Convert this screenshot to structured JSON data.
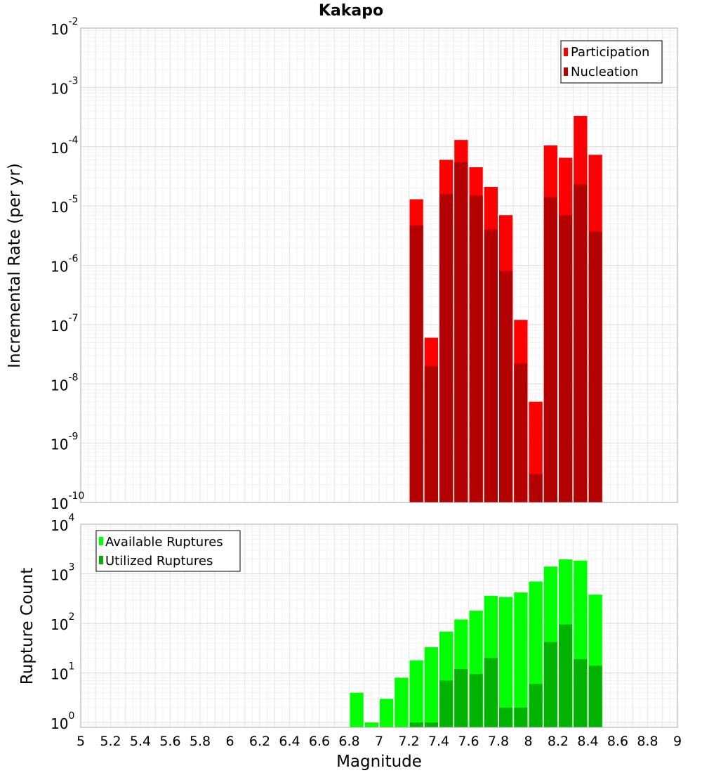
{
  "chart_data": [
    {
      "type": "bar",
      "title": "Kakapo",
      "xlabel": "",
      "ylabel": "Incremental Rate (per yr)",
      "yscale": "log",
      "ylim": [
        1e-10,
        0.01
      ],
      "xlim": [
        5,
        9
      ],
      "y_tick_exponents": [
        "-2",
        "-3",
        "-4",
        "-5",
        "-6",
        "-7",
        "-8",
        "-9",
        "-10"
      ],
      "legend": {
        "position": "top-right",
        "entries": [
          "Participation",
          "Nucleation"
        ]
      },
      "colors": {
        "Participation": "#ff0000",
        "Nucleation": "#b30000"
      },
      "x": [
        7.25,
        7.35,
        7.45,
        7.55,
        7.65,
        7.75,
        7.85,
        7.95,
        8.05,
        8.15,
        8.25,
        8.35,
        8.45
      ],
      "series": [
        {
          "name": "Participation",
          "values": [
            1.3e-05,
            6e-08,
            6e-05,
            0.00013,
            4.5e-05,
            2.1e-05,
            7e-06,
            1.2e-07,
            5e-09,
            0.000105,
            6.5e-05,
            0.00033,
            7.3e-05
          ]
        },
        {
          "name": "Nucleation",
          "values": [
            4.7e-06,
            2e-08,
            1.6e-05,
            5.5e-05,
            1.5e-05,
            4e-06,
            8e-07,
            2.2e-08,
            3e-10,
            1.4e-05,
            7e-06,
            2.3e-05,
            3.7e-06
          ]
        }
      ]
    },
    {
      "type": "bar",
      "xlabel": "Magnitude",
      "ylabel": "Rupture Count",
      "yscale": "log",
      "ylim": [
        0.8,
        10000
      ],
      "xlim": [
        5,
        9
      ],
      "x_tick_labels": [
        "5",
        "5.2",
        "5.4",
        "5.6",
        "5.8",
        "6",
        "6.2",
        "6.4",
        "6.6",
        "6.8",
        "7",
        "7.2",
        "7.4",
        "7.6",
        "7.8",
        "8",
        "8.2",
        "8.4",
        "8.6",
        "8.8",
        "9"
      ],
      "y_tick_exponents": [
        "4",
        "3",
        "2",
        "1",
        "0"
      ],
      "legend": {
        "position": "top-left",
        "entries": [
          "Available Ruptures",
          "Utilized Ruptures"
        ]
      },
      "colors": {
        "Available Ruptures": "#00ff00",
        "Utilized Ruptures": "#00b300"
      },
      "x": [
        6.85,
        6.95,
        7.05,
        7.15,
        7.25,
        7.35,
        7.45,
        7.55,
        7.65,
        7.75,
        7.85,
        7.95,
        8.05,
        8.15,
        8.25,
        8.35,
        8.45
      ],
      "series": [
        {
          "name": "Available Ruptures",
          "values": [
            4,
            1,
            3,
            8,
            18,
            33,
            68,
            120,
            180,
            360,
            340,
            420,
            700,
            1400,
            1950,
            1850,
            380
          ]
        },
        {
          "name": "Utilized Ruptures",
          "values": [
            0,
            0,
            0,
            0,
            1,
            1,
            7,
            12,
            9.5,
            20,
            2,
            2,
            6,
            42,
            95,
            19,
            14
          ]
        }
      ]
    }
  ]
}
